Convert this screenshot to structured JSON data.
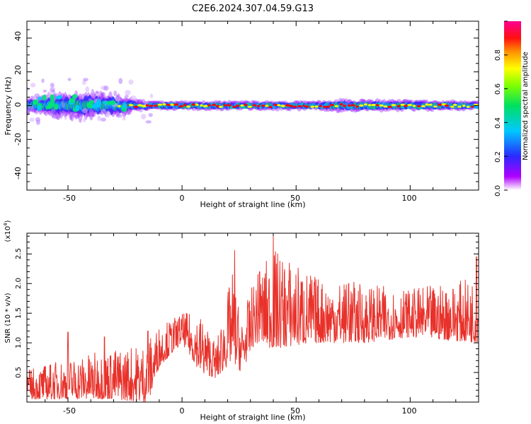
{
  "figure_title": "C2E6.2024.307.04.59.G13",
  "colors": {
    "snr_line": "#e8312a",
    "axis": "#000000",
    "colormap": [
      "#ffffff",
      "#8b00ff",
      "#1e3cff",
      "#00c8ff",
      "#00e676",
      "#ffff00",
      "#ff8c00",
      "#ff0000",
      "#ff0080"
    ]
  },
  "chart_data": [
    {
      "type": "heatmap",
      "title": "C2E6.2024.307.04.59.G13",
      "xlabel": "Height of straight line (km)",
      "ylabel": "Frequency (Hz)",
      "xlim": [
        -68,
        130
      ],
      "ylim": [
        -50,
        50
      ],
      "xticks": [
        "-50",
        "0",
        "50",
        "100"
      ],
      "yticks": [
        "40",
        "20",
        "0",
        "-20",
        "-40"
      ],
      "colorbar": {
        "label": "Normalized spectral amplitude",
        "range": [
          0.0,
          1.0
        ],
        "ticks": [
          "0.0",
          "0.2",
          "0.4",
          "0.6",
          "0.8"
        ]
      },
      "band_center_hz": 0,
      "band_halfwidth_hz": [
        {
          "x": -68,
          "hz": 4
        },
        {
          "x": -45,
          "hz": 7
        },
        {
          "x": -30,
          "hz": 6
        },
        {
          "x": -20,
          "hz": 3
        },
        {
          "x": 0,
          "hz": 3
        },
        {
          "x": 60,
          "hz": 3
        },
        {
          "x": 70,
          "hz": 4
        },
        {
          "x": 130,
          "hz": 3
        }
      ]
    },
    {
      "type": "line",
      "xlabel": "Height of straight line (km)",
      "ylabel": "SNR (10 * v/v)",
      "yscale_note": "(x10",
      "yscale_exp": "4",
      "xlim": [
        -68,
        130
      ],
      "ylim": [
        0,
        2.85
      ],
      "xticks": [
        "-50",
        "0",
        "50",
        "100"
      ],
      "yticks": [
        "0.5",
        "1.0",
        "1.5",
        "2.0",
        "2.5"
      ],
      "trend": [
        {
          "x": -68,
          "lo": 0.05,
          "hi": 0.55
        },
        {
          "x": -50,
          "lo": 0.05,
          "hi": 0.75
        },
        {
          "x": -30,
          "lo": 0.05,
          "hi": 0.9
        },
        {
          "x": -16,
          "lo": 0.0,
          "hi": 1.0
        },
        {
          "x": -14,
          "lo": 0.1,
          "hi": 1.1
        },
        {
          "x": -10,
          "lo": 0.6,
          "hi": 1.3
        },
        {
          "x": 0,
          "lo": 1.0,
          "hi": 1.5
        },
        {
          "x": 8,
          "lo": 0.5,
          "hi": 1.5
        },
        {
          "x": 15,
          "lo": 0.4,
          "hi": 1.0
        },
        {
          "x": 22,
          "lo": 0.7,
          "hi": 2.2
        },
        {
          "x": 26,
          "lo": 0.5,
          "hi": 1.4
        },
        {
          "x": 32,
          "lo": 1.0,
          "hi": 2.1
        },
        {
          "x": 40,
          "lo": 0.9,
          "hi": 2.6
        },
        {
          "x": 60,
          "lo": 1.0,
          "hi": 2.1
        },
        {
          "x": 80,
          "lo": 1.0,
          "hi": 2.0
        },
        {
          "x": 100,
          "lo": 1.1,
          "hi": 1.9
        },
        {
          "x": 130,
          "lo": 1.0,
          "hi": 2.1
        }
      ],
      "peaks": [
        {
          "x": -50,
          "y": 1.18
        },
        {
          "x": -34,
          "y": 1.1
        },
        {
          "x": -15,
          "y": 1.2
        },
        {
          "x": 23,
          "y": 2.56
        },
        {
          "x": 34,
          "y": 2.2
        },
        {
          "x": 40,
          "y": 2.82
        },
        {
          "x": 73,
          "y": 2.0
        },
        {
          "x": 129,
          "y": 2.45
        }
      ]
    }
  ]
}
